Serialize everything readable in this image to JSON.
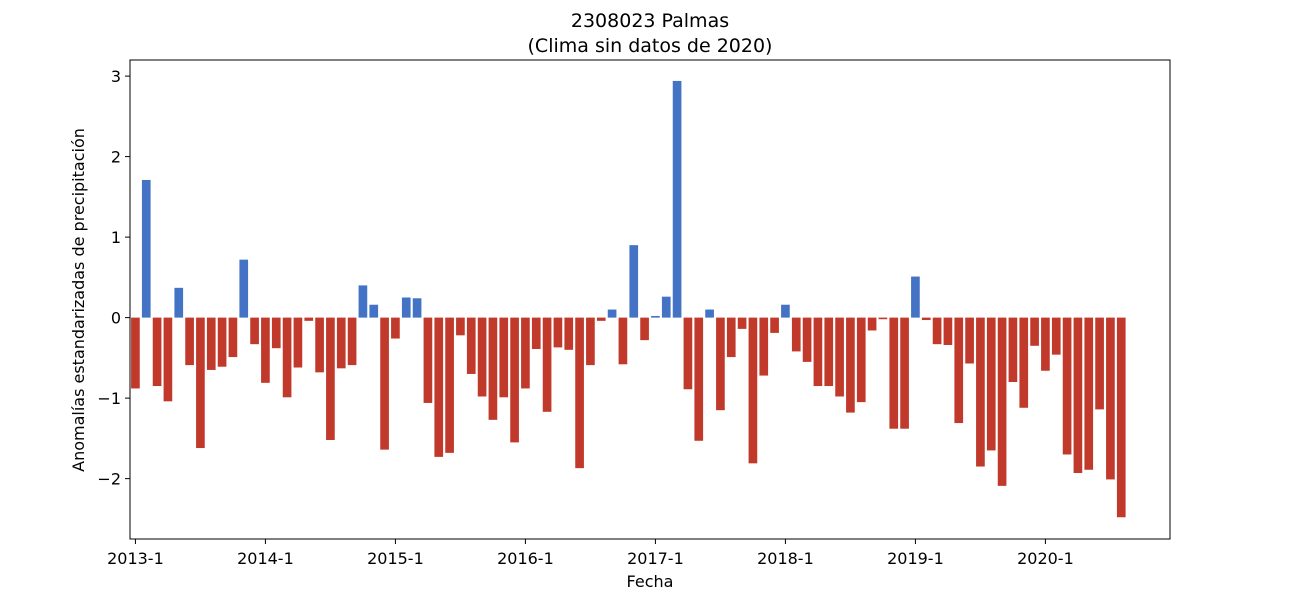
{
  "chart_data": {
    "type": "bar",
    "title": "2308023 Palmas",
    "subtitle": "(Clima sin datos de 2020)",
    "xlabel": "Fecha",
    "ylabel": "Anomalías estandarizadas de precipitación",
    "start_month": "2013-1",
    "x_ticks": [
      {
        "label": "2013-1",
        "index": 0
      },
      {
        "label": "2014-1",
        "index": 12
      },
      {
        "label": "2015-1",
        "index": 24
      },
      {
        "label": "2016-1",
        "index": 36
      },
      {
        "label": "2017-1",
        "index": 48
      },
      {
        "label": "2018-1",
        "index": 60
      },
      {
        "label": "2019-1",
        "index": 72
      },
      {
        "label": "2020-1",
        "index": 84
      }
    ],
    "y_ticks": [
      {
        "label": "−2",
        "value": -2
      },
      {
        "label": "−1",
        "value": -1
      },
      {
        "label": "0",
        "value": 0
      },
      {
        "label": "1",
        "value": 1
      },
      {
        "label": "2",
        "value": 2
      },
      {
        "label": "3",
        "value": 3
      }
    ],
    "ylim": [
      -2.75,
      3.2
    ],
    "xlim": [
      -0.5,
      95.5
    ],
    "grid": false,
    "colors": {
      "positive": "#4472c4",
      "negative": "#c0392b"
    },
    "values": [
      -0.88,
      1.71,
      -0.85,
      -1.04,
      0.37,
      -0.59,
      -1.62,
      -0.65,
      -0.61,
      -0.49,
      0.72,
      -0.33,
      -0.81,
      -0.38,
      -0.99,
      -0.62,
      -0.04,
      -0.68,
      -1.52,
      -0.63,
      -0.59,
      0.4,
      0.16,
      -1.64,
      -0.26,
      0.25,
      0.24,
      -1.06,
      -1.73,
      -1.68,
      -0.22,
      -0.7,
      -0.98,
      -1.27,
      -0.99,
      -1.55,
      -0.88,
      -0.39,
      -1.17,
      -0.37,
      -0.4,
      -1.87,
      -0.59,
      -0.04,
      0.1,
      -0.58,
      0.9,
      -0.28,
      0.02,
      0.26,
      2.94,
      -0.89,
      -1.53,
      0.1,
      -1.15,
      -0.49,
      -0.14,
      -1.81,
      -0.72,
      -0.19,
      0.16,
      -0.42,
      -0.55,
      -0.85,
      -0.85,
      -0.98,
      -1.18,
      -1.05,
      -0.16,
      -0.02,
      -1.38,
      -1.38,
      0.51,
      -0.03,
      -0.33,
      -0.34,
      -1.31,
      -0.57,
      -1.85,
      -1.65,
      -2.09,
      -0.8,
      -1.12,
      -0.35,
      -0.66,
      -0.46,
      -1.7,
      -1.93,
      -1.89,
      -1.14,
      -2.01,
      -2.48
    ]
  }
}
